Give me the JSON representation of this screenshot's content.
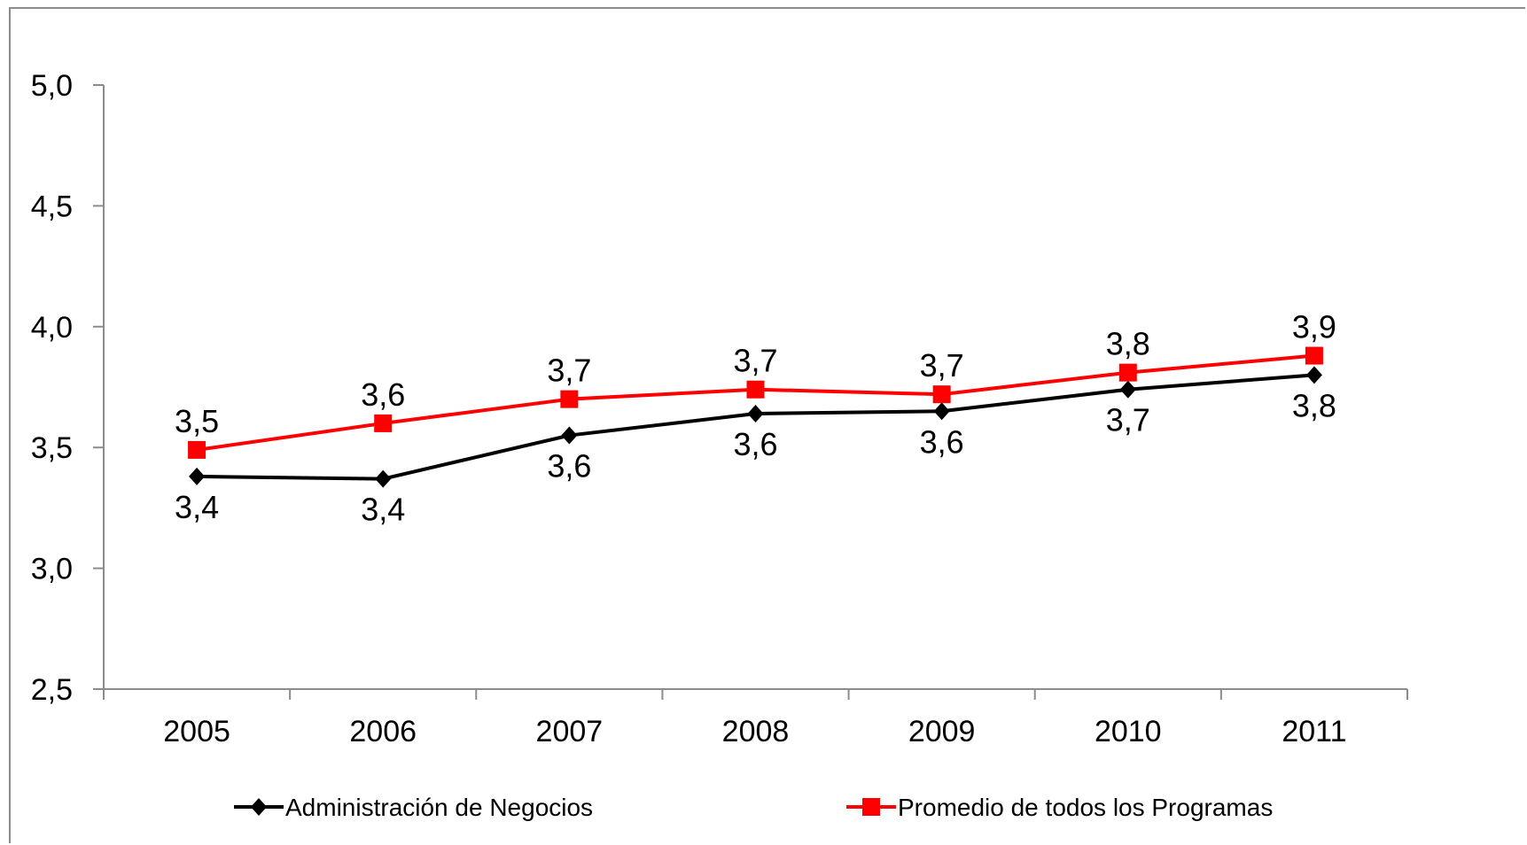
{
  "chart_data": {
    "type": "line",
    "categories": [
      "2005",
      "2006",
      "2007",
      "2008",
      "2009",
      "2010",
      "2011"
    ],
    "y_ticks": [
      "2,5",
      "3,0",
      "3,5",
      "4,0",
      "4,5",
      "5,0"
    ],
    "ylim": [
      2.5,
      5.0
    ],
    "grid": false,
    "legend_position": "bottom",
    "series": [
      {
        "name": "Administración de Negocios",
        "color": "#000000",
        "marker": "diamond",
        "values": [
          3.38,
          3.37,
          3.55,
          3.64,
          3.65,
          3.74,
          3.8
        ],
        "labels": [
          "3,4",
          "3,4",
          "3,6",
          "3,6",
          "3,6",
          "3,7",
          "3,8"
        ],
        "label_position": "below"
      },
      {
        "name": "Promedio de todos los Programas",
        "color": "#ff0000",
        "marker": "square",
        "values": [
          3.49,
          3.6,
          3.7,
          3.74,
          3.72,
          3.81,
          3.88
        ],
        "labels": [
          "3,5",
          "3,6",
          "3,7",
          "3,7",
          "3,7",
          "3,8",
          "3,9"
        ],
        "label_position": "above"
      }
    ]
  }
}
